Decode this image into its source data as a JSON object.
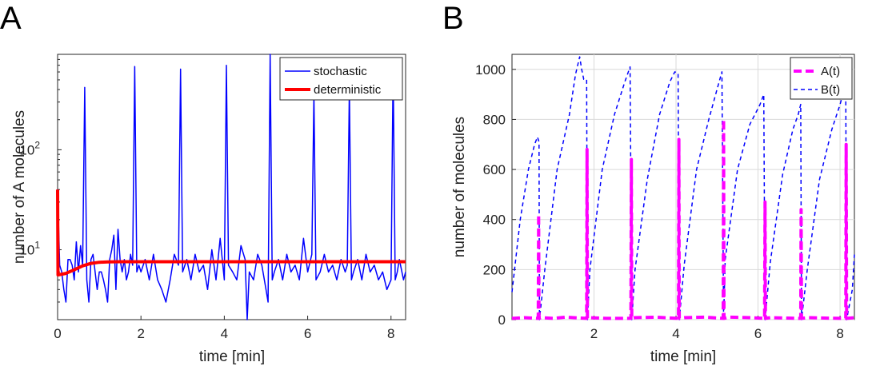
{
  "chart_data": [
    {
      "panel_label": "A",
      "type": "line",
      "xlabel": "time [min]",
      "ylabel": "number of A molecules",
      "xlim": [
        0,
        8.35
      ],
      "ylim": [
        2,
        900
      ],
      "yscale": "log",
      "xticks": [
        0,
        2,
        4,
        6,
        8
      ],
      "xtick_labels": [
        "0",
        "2",
        "4",
        "6",
        "8"
      ],
      "ytick_base": "10",
      "yticks": [
        10,
        100
      ],
      "ytick_exponents": [
        "1",
        "2"
      ],
      "grid": false,
      "legend_position": "top-right",
      "series": [
        {
          "name": "stochastic",
          "color": "#0000ff",
          "x": [
            0,
            0.05,
            0.1,
            0.15,
            0.2,
            0.25,
            0.3,
            0.35,
            0.4,
            0.45,
            0.5,
            0.55,
            0.6,
            0.65,
            0.7,
            0.75,
            0.8,
            0.85,
            0.9,
            0.95,
            1.0,
            1.05,
            1.1,
            1.15,
            1.2,
            1.25,
            1.3,
            1.35,
            1.4,
            1.45,
            1.5,
            1.55,
            1.6,
            1.65,
            1.7,
            1.75,
            1.8,
            1.85,
            1.9,
            1.95,
            2.0,
            2.1,
            2.2,
            2.3,
            2.4,
            2.5,
            2.6,
            2.7,
            2.8,
            2.9,
            2.95,
            3.0,
            3.1,
            3.2,
            3.3,
            3.4,
            3.5,
            3.6,
            3.7,
            3.8,
            3.9,
            4.0,
            4.05,
            4.1,
            4.2,
            4.3,
            4.4,
            4.5,
            4.55,
            4.6,
            4.7,
            4.8,
            4.9,
            5.0,
            5.05,
            5.1,
            5.15,
            5.2,
            5.3,
            5.4,
            5.5,
            5.6,
            5.7,
            5.8,
            5.9,
            6.0,
            6.1,
            6.15,
            6.2,
            6.3,
            6.4,
            6.5,
            6.6,
            6.7,
            6.8,
            6.9,
            6.95,
            7.0,
            7.05,
            7.1,
            7.2,
            7.3,
            7.4,
            7.5,
            7.6,
            7.7,
            7.8,
            7.9,
            8.0,
            8.05,
            8.1,
            8.15,
            8.2,
            8.3,
            8.35
          ],
          "y": [
            40,
            7,
            6,
            4,
            3,
            8,
            8,
            7,
            5,
            12,
            6,
            11,
            7,
            420,
            5,
            3,
            8,
            9,
            6,
            4,
            6,
            6,
            5,
            4,
            3,
            8,
            10,
            14,
            4,
            16,
            8,
            6,
            8,
            5,
            6,
            9,
            7,
            680,
            6,
            7,
            6,
            8,
            5,
            9,
            5,
            4,
            3,
            5,
            9,
            7,
            640,
            6,
            8,
            5,
            9,
            6,
            7,
            4,
            10,
            5,
            13,
            5,
            700,
            7,
            6,
            5,
            11,
            8,
            2,
            6,
            5,
            9,
            7,
            4,
            3,
            900,
            5,
            6,
            8,
            5,
            9,
            6,
            7,
            5,
            13,
            6,
            9,
            360,
            5,
            6,
            9,
            6,
            7,
            5,
            8,
            6,
            7,
            420,
            5,
            6,
            8,
            5,
            9,
            6,
            7,
            5,
            6,
            4,
            5,
            680,
            5,
            6,
            8,
            5,
            6
          ]
        },
        {
          "name": "deterministic",
          "color": "#ff0000",
          "x": [
            0,
            0.01,
            0.2,
            0.4,
            0.6,
            0.8,
            1.0,
            1.2,
            1.5,
            2.0,
            3.0,
            4.0,
            5.0,
            6.0,
            7.0,
            8.35
          ],
          "y": [
            40,
            5.6,
            5.8,
            6.3,
            6.9,
            7.3,
            7.5,
            7.55,
            7.6,
            7.6,
            7.6,
            7.6,
            7.6,
            7.6,
            7.6,
            7.6
          ]
        }
      ]
    },
    {
      "panel_label": "B",
      "type": "line",
      "xlabel": "time [min]",
      "ylabel": "number of molecules",
      "xlim": [
        0,
        8.35
      ],
      "ylim": [
        0,
        1060
      ],
      "xticks": [
        2,
        4,
        6,
        8
      ],
      "xtick_labels": [
        "2",
        "4",
        "6",
        "8"
      ],
      "yticks": [
        0,
        200,
        400,
        600,
        800,
        1000
      ],
      "ytick_labels": [
        "0",
        "200",
        "400",
        "600",
        "800",
        "1000"
      ],
      "grid": true,
      "legend_position": "top-right",
      "series": [
        {
          "name": "A(t)",
          "color": "#ff00ff",
          "x": [
            0,
            0.3,
            0.64,
            0.65,
            0.66,
            0.7,
            1.0,
            1.3,
            1.82,
            1.83,
            1.84,
            1.9,
            2.3,
            2.9,
            2.91,
            2.92,
            3.0,
            3.5,
            4.06,
            4.07,
            4.08,
            4.2,
            4.7,
            5.15,
            5.16,
            5.17,
            5.3,
            5.8,
            6.16,
            6.17,
            6.18,
            6.3,
            6.8,
            7.04,
            7.05,
            7.06,
            7.2,
            7.7,
            8.14,
            8.15,
            8.16,
            8.35
          ],
          "y": [
            5,
            8,
            5,
            420,
            5,
            8,
            5,
            10,
            5,
            680,
            5,
            8,
            5,
            5,
            640,
            5,
            8,
            10,
            5,
            720,
            5,
            8,
            10,
            5,
            800,
            5,
            10,
            8,
            5,
            470,
            5,
            8,
            6,
            5,
            440,
            5,
            8,
            6,
            5,
            700,
            5,
            8
          ]
        },
        {
          "name": "B(t)",
          "color": "#0000ff",
          "x": [
            0,
            0.2,
            0.4,
            0.55,
            0.62,
            0.66,
            0.67,
            0.8,
            1.1,
            1.4,
            1.55,
            1.65,
            1.7,
            1.75,
            1.82,
            1.84,
            1.9,
            2.2,
            2.5,
            2.75,
            2.88,
            2.92,
            3.0,
            3.3,
            3.6,
            3.85,
            3.97,
            4.05,
            4.08,
            4.2,
            4.5,
            4.8,
            5.0,
            5.12,
            5.16,
            5.2,
            5.5,
            5.8,
            6.05,
            6.14,
            6.17,
            6.3,
            6.6,
            6.85,
            6.98,
            7.04,
            7.06,
            7.2,
            7.5,
            7.8,
            8.0,
            8.1,
            8.14,
            8.16,
            8.3,
            8.35
          ],
          "y": [
            110,
            400,
            600,
            700,
            730,
            710,
            0,
            200,
            600,
            820,
            980,
            1050,
            1000,
            960,
            960,
            0,
            200,
            600,
            820,
            950,
            1010,
            0,
            200,
            560,
            820,
            950,
            990,
            985,
            0,
            220,
            600,
            800,
            920,
            990,
            0,
            240,
            600,
            780,
            860,
            900,
            0,
            230,
            580,
            760,
            820,
            860,
            0,
            200,
            560,
            760,
            860,
            920,
            920,
            0,
            120,
            260
          ]
        }
      ]
    }
  ]
}
